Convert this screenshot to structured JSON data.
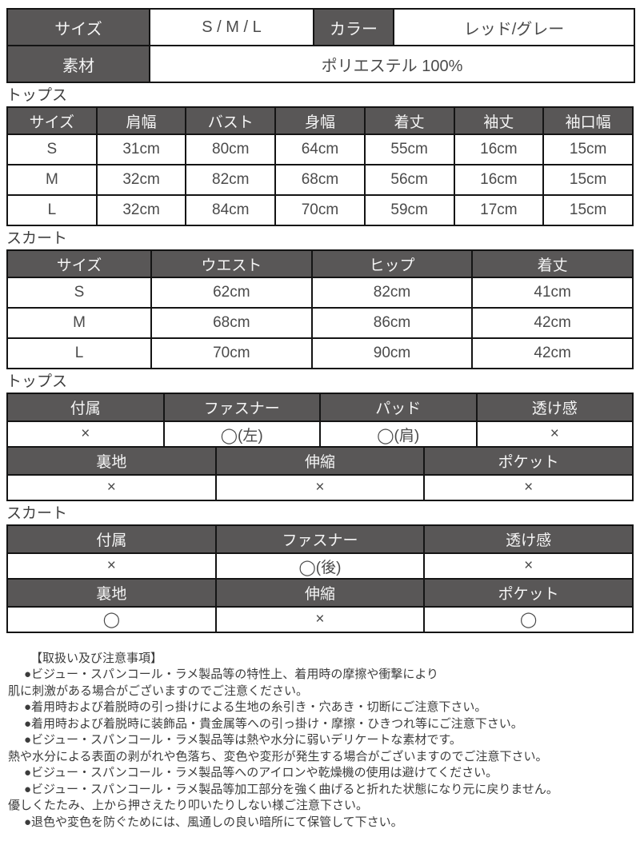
{
  "info": {
    "size_label": "サイズ",
    "size_value": "S / M / L",
    "color_label": "カラー",
    "color_value": "レッド/グレー",
    "material_label": "素材",
    "material_value": "ポリエステル 100%"
  },
  "tops_size": {
    "section_label": "トップス",
    "headers": [
      "サイズ",
      "肩幅",
      "バスト",
      "身幅",
      "着丈",
      "袖丈",
      "袖口幅"
    ],
    "rows": [
      [
        "S",
        "31cm",
        "80cm",
        "64cm",
        "55cm",
        "16cm",
        "15cm"
      ],
      [
        "M",
        "32cm",
        "82cm",
        "68cm",
        "56cm",
        "16cm",
        "15cm"
      ],
      [
        "L",
        "32cm",
        "84cm",
        "70cm",
        "59cm",
        "17cm",
        "15cm"
      ]
    ]
  },
  "skirt_size": {
    "section_label": "スカート",
    "headers": [
      "サイズ",
      "ウエスト",
      "ヒップ",
      "着丈"
    ],
    "rows": [
      [
        "S",
        "62cm",
        "82cm",
        "41cm"
      ],
      [
        "M",
        "68cm",
        "86cm",
        "42cm"
      ],
      [
        "L",
        "70cm",
        "90cm",
        "42cm"
      ]
    ]
  },
  "tops_details": {
    "section_label": "トップス",
    "band1": {
      "headers": [
        "付属",
        "ファスナー",
        "パッド",
        "透け感"
      ],
      "values": [
        "×",
        "◯(左)",
        "◯(肩)",
        "×"
      ]
    },
    "band2": {
      "headers": [
        "裏地",
        "伸縮",
        "ポケット"
      ],
      "values": [
        "×",
        "×",
        "×"
      ]
    }
  },
  "skirt_details": {
    "section_label": "スカート",
    "band1": {
      "headers": [
        "付属",
        "ファスナー",
        "透け感"
      ],
      "values": [
        "×",
        "◯(後)",
        "×"
      ]
    },
    "band2": {
      "headers": [
        "裏地",
        "伸縮",
        "ポケット"
      ],
      "values": [
        "◯",
        "×",
        "◯"
      ]
    }
  },
  "notes": {
    "heading": "【取扱い及び注意事項】",
    "lines": [
      "●ビジュー・スパンコール・ラメ製品等の特性上、着用時の摩擦や衝撃により",
      "肌に刺激がある場合がございますのでご注意ください。",
      "●着用時および着脱時の引っ掛けによる生地の糸引き・穴あき・切断にご注意下さい。",
      "●着用時および着脱時に装飾品・貴金属等への引っ掛け・摩擦・ひきつれ等にご注意下さい。",
      "●ビジュー・スパンコール・ラメ製品等は熱や水分に弱いデリケートな素材です。",
      "熱や水分による表面の剥がれや色落ち、変色や変形が発生する場合がございますのでご注意下さい。",
      "●ビジュー・スパンコール・ラメ製品等へのアイロンや乾燥機の使用は避けてください。",
      "●ビジュー・スパンコール・ラメ製品等加工部分を強く曲げると折れた状態になり元に戻りません。",
      "優しくたたみ、上から押さえたり叩いたりしない様ご注意下さい。",
      "●退色や変色を防ぐためには、風通しの良い暗所にて保管して下さい。"
    ]
  },
  "colors": {
    "header_bg": "#595757",
    "header_text": "#f5f5f5",
    "border": "#141414",
    "body_text": "#4a4a4a"
  }
}
